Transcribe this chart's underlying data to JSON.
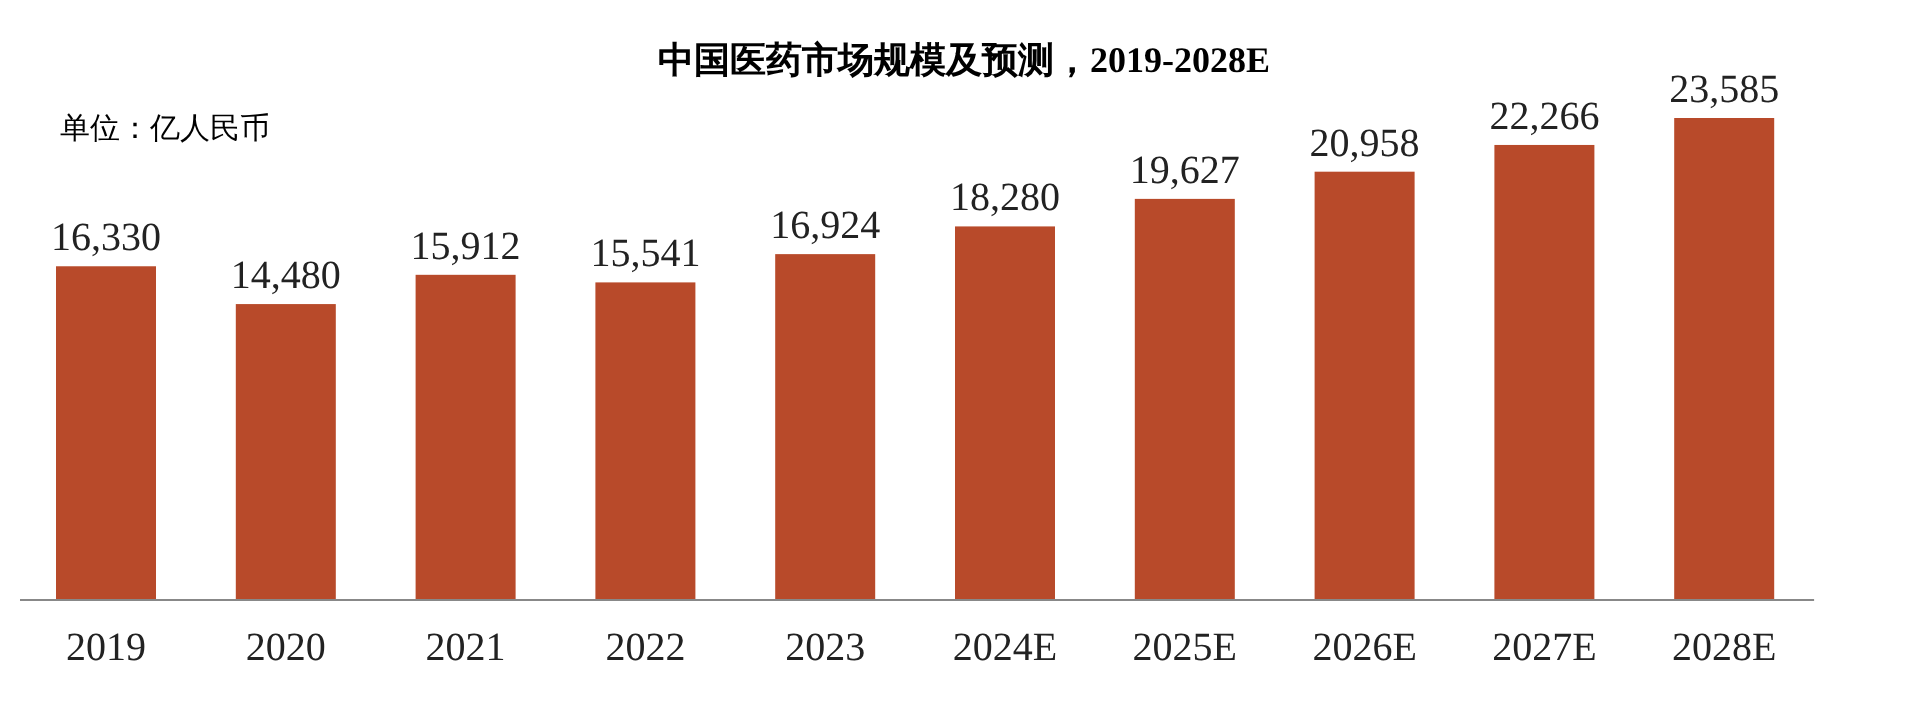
{
  "chart_data": {
    "type": "bar",
    "title": "中国医药市场规模及预测，2019-2028E",
    "annotations": [
      "单位：亿人民币"
    ],
    "categories": [
      "2019",
      "2020",
      "2021",
      "2022",
      "2023",
      "2024E",
      "2025E",
      "2026E",
      "2027E",
      "2028E"
    ],
    "values": [
      16330,
      14480,
      15912,
      15541,
      16924,
      18280,
      19627,
      20958,
      22266,
      23585
    ],
    "value_labels": [
      "16,330",
      "14,480",
      "15,912",
      "15,541",
      "16,924",
      "18,280",
      "19,627",
      "20,958",
      "22,266",
      "23,585"
    ],
    "color": "#b84a2a"
  }
}
